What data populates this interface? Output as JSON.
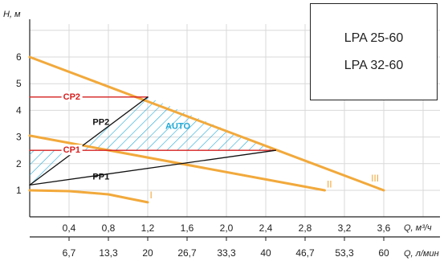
{
  "chart_data": {
    "type": "line",
    "ylabel": "H, м",
    "xlabel": "Q, м³/ч",
    "xlabel_secondary": "Q, л/мин",
    "xlim": [
      0,
      4.0
    ],
    "ylim": [
      0,
      7
    ],
    "y_ticks": [
      "1",
      "2",
      "3",
      "4",
      "5",
      "6"
    ],
    "x_ticks": [
      "0,4",
      "0,8",
      "1,2",
      "1,6",
      "2,0",
      "2,4",
      "2,8",
      "3,2",
      "3,6"
    ],
    "x_ticks_secondary": [
      "6,7",
      "13,3",
      "20",
      "26,7",
      "33,3",
      "40",
      "46,7",
      "53,3",
      "60"
    ],
    "grid": true,
    "colors": {
      "speed_curves": "#f2a93b",
      "constant_pressure": "#d62020",
      "proportional_pressure": "#111111",
      "auto_hatch": "#22a9d6",
      "grid": "#d9d9d9"
    },
    "series": [
      {
        "name": "I",
        "type": "curve",
        "x": [
          0,
          0.4,
          0.8,
          1.0,
          1.2
        ],
        "y": [
          1.0,
          0.97,
          0.85,
          0.7,
          0.55
        ]
      },
      {
        "name": "II",
        "type": "line",
        "x": [
          0,
          3.0
        ],
        "y": [
          3.05,
          1.0
        ]
      },
      {
        "name": "III",
        "type": "line",
        "x": [
          0,
          3.6
        ],
        "y": [
          6.0,
          1.0
        ]
      },
      {
        "name": "CP2",
        "type": "line",
        "x": [
          0,
          1.2
        ],
        "y": [
          4.5,
          4.5
        ]
      },
      {
        "name": "CP1",
        "type": "line",
        "x": [
          0,
          2.5
        ],
        "y": [
          2.5,
          2.5
        ]
      },
      {
        "name": "PP2",
        "type": "line",
        "x": [
          0,
          1.2
        ],
        "y": [
          1.2,
          4.5
        ]
      },
      {
        "name": "PP1",
        "type": "line",
        "x": [
          0,
          2.5
        ],
        "y": [
          1.2,
          2.5
        ]
      }
    ],
    "auto_region": {
      "label": "AUTO",
      "polygon_x": [
        0,
        1.2,
        2.5,
        0
      ],
      "polygon_y": [
        1.2,
        4.5,
        2.5,
        2.5
      ]
    }
  },
  "legend": {
    "model_1": "LPA 25-60",
    "model_2": "LPA 32-60"
  }
}
